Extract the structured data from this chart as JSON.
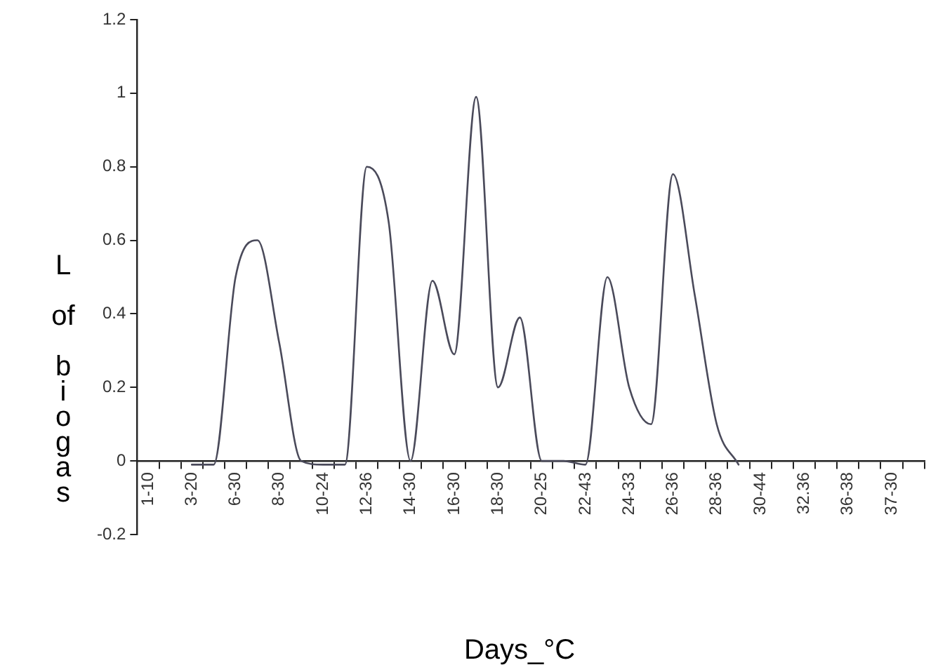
{
  "chart_data": {
    "type": "line",
    "xlabel": "Days_°C",
    "ylabel": "L of biogas",
    "categories": [
      "1-10",
      null,
      "3-20",
      null,
      "6-30",
      null,
      "8-30",
      null,
      "10-24",
      null,
      "12-36",
      null,
      "14-30",
      null,
      "16-30",
      null,
      "18-30",
      null,
      "20-25",
      null,
      "22-43",
      null,
      "24-33",
      null,
      "26-36",
      null,
      "28-36",
      null,
      "30-44",
      null,
      "32.36",
      null,
      "36-38",
      null,
      "37-30",
      null
    ],
    "series": [
      {
        "color": "#4a4a5a",
        "values": [
          null,
          null,
          -0.01,
          -0.01,
          0.5,
          0.6,
          0.32,
          0,
          -0.01,
          -0.01,
          0.8,
          0.65,
          0,
          0.49,
          0.29,
          0.99,
          0.2,
          0.39,
          0,
          0,
          -0.01,
          0.5,
          0.2,
          0.1,
          0.78,
          0.45,
          0.1,
          -0.01,
          null,
          null,
          null,
          null,
          null,
          null,
          null,
          null
        ]
      }
    ],
    "ylim": [
      -0.2,
      1.2
    ],
    "yticks": [
      -0.2,
      0,
      0.2,
      0.4,
      0.6,
      0.8,
      1,
      1.2
    ],
    "grid": false,
    "legend": false,
    "marker": "none",
    "line_style": "solid"
  }
}
